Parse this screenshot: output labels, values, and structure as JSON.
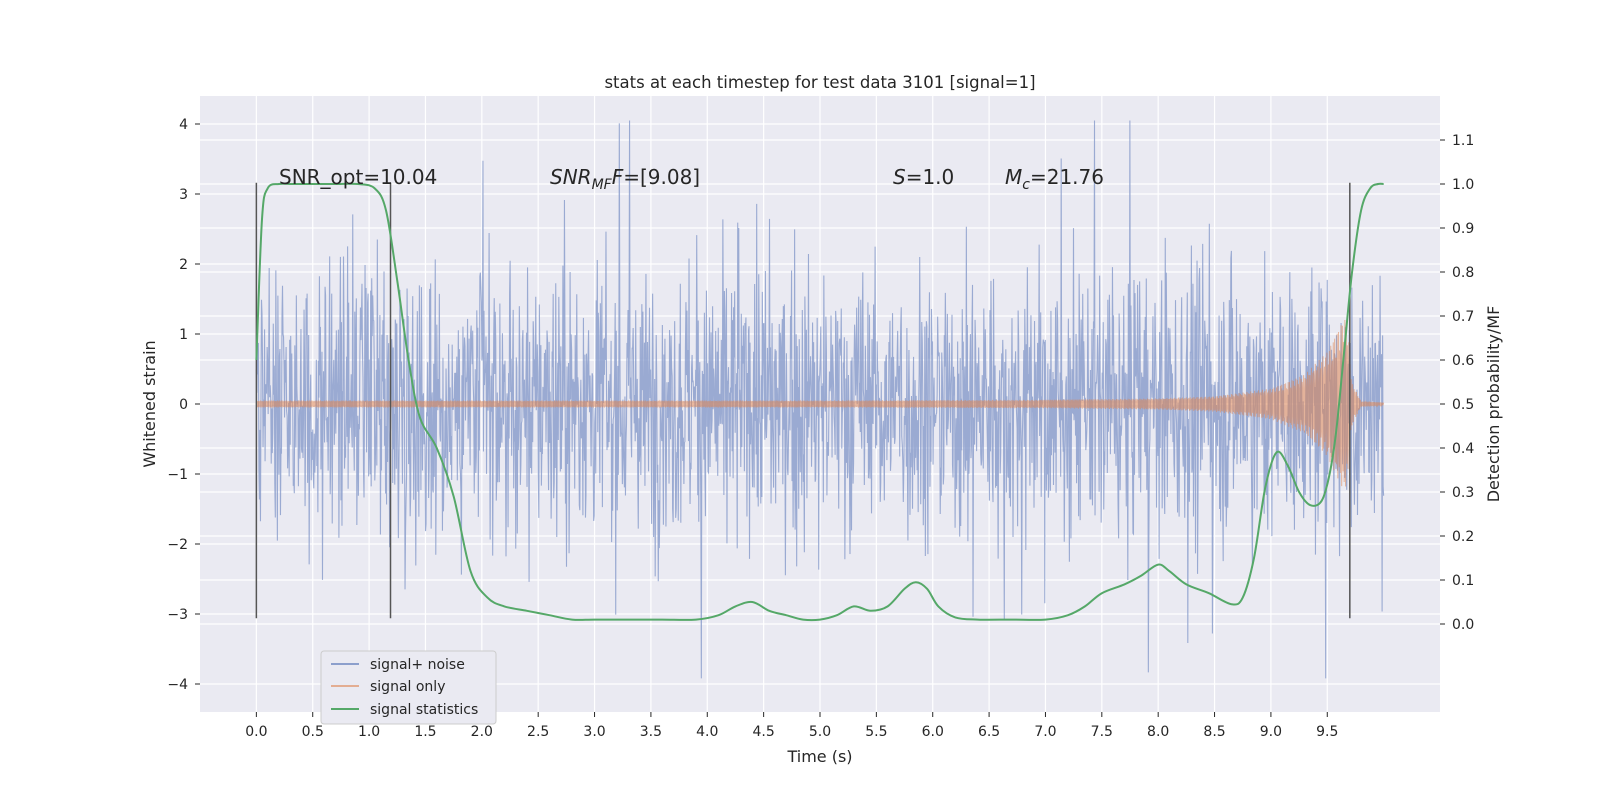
{
  "chart_data": {
    "type": "line",
    "title": "stats at each timestep for test data 3101 [signal=1]",
    "xlabel": "Time (s)",
    "ylabel_left": "Whitened strain",
    "ylabel_right": "Detection probability/MF",
    "xlim": [
      -0.5,
      10.5
    ],
    "ylim_left": [
      -4.4,
      4.4
    ],
    "ylim_right": [
      -0.2,
      1.2
    ],
    "x_ticks": [
      "0.0",
      "0.5",
      "1.0",
      "1.5",
      "2.0",
      "2.5",
      "3.0",
      "3.5",
      "4.0",
      "4.5",
      "5.0",
      "5.5",
      "6.0",
      "6.5",
      "7.0",
      "7.5",
      "8.0",
      "8.5",
      "9.0",
      "9.5"
    ],
    "y_ticks_left": [
      "4",
      "3",
      "2",
      "1",
      "0",
      "−1",
      "−2",
      "−3",
      "−4"
    ],
    "y_ticks_right": [
      "1.1",
      "1.0",
      "0.9",
      "0.8",
      "0.7",
      "0.6",
      "0.5",
      "0.4",
      "0.3",
      "0.2",
      "0.1",
      "0.0"
    ],
    "annotations": {
      "snr_opt": "SNR_opt=10.04",
      "snr_mf_sym": "SNR",
      "snr_mf_sub": "MF",
      "snr_mf_rest": "=[9.08]",
      "s_sym": "S",
      "s_rest": "=1.0",
      "mc_sym": "M",
      "mc_sub": "c",
      "mc_rest": "=21.76"
    },
    "vertical_markers": [
      {
        "x": 0.0,
        "y0": -3.06,
        "y1": 3.16
      },
      {
        "x": 1.19,
        "y0": -3.06,
        "y1": 3.16
      },
      {
        "x": 9.7,
        "y0": -3.06,
        "y1": 3.16
      }
    ],
    "legend": [
      {
        "label": "signal+ noise",
        "color": "#8c9fcc"
      },
      {
        "label": "signal only",
        "color": "#dd8452"
      },
      {
        "label": "signal statistics",
        "color": "#55a868"
      }
    ],
    "legend_position": "lower left",
    "series": [
      {
        "name": "signal+ noise",
        "color": "#8c9fcc",
        "x_range": [
          0,
          10
        ],
        "approx_envelope": {
          "typical_abs": 1.3,
          "peak_max": 4.05,
          "peak_min": -3.92
        }
      },
      {
        "name": "signal only",
        "color": "#dd8452",
        "x_range": [
          0,
          10
        ],
        "envelope_points": [
          [
            0,
            0.05
          ],
          [
            5,
            0.05
          ],
          [
            7,
            0.06
          ],
          [
            8,
            0.08
          ],
          [
            8.5,
            0.11
          ],
          [
            9,
            0.22
          ],
          [
            9.3,
            0.42
          ],
          [
            9.5,
            0.75
          ],
          [
            9.65,
            1.25
          ],
          [
            9.68,
            1.1
          ],
          [
            9.72,
            0.3
          ],
          [
            9.8,
            0.04
          ],
          [
            10,
            0.02
          ]
        ]
      },
      {
        "name": "signal statistics",
        "color": "#55a868",
        "axis": "right",
        "x": [
          0.0,
          0.05,
          0.1,
          0.2,
          0.3,
          0.5,
          0.7,
          0.9,
          1.05,
          1.15,
          1.25,
          1.35,
          1.45,
          1.6,
          1.75,
          1.9,
          2.05,
          2.2,
          2.4,
          2.6,
          2.8,
          3.0,
          3.3,
          3.6,
          3.9,
          4.1,
          4.25,
          4.4,
          4.55,
          4.7,
          4.85,
          5.0,
          5.15,
          5.3,
          5.45,
          5.6,
          5.75,
          5.85,
          5.95,
          6.05,
          6.2,
          6.4,
          6.7,
          7.0,
          7.2,
          7.35,
          7.5,
          7.7,
          7.85,
          8.0,
          8.1,
          8.25,
          8.45,
          8.65,
          8.75,
          8.85,
          8.95,
          9.05,
          9.15,
          9.25,
          9.35,
          9.45,
          9.52,
          9.58,
          9.65,
          9.72,
          9.8,
          9.88,
          9.95,
          10.0
        ],
        "values": [
          0.6,
          0.92,
          0.99,
          1.0,
          1.0,
          1.0,
          1.0,
          1.0,
          0.99,
          0.94,
          0.78,
          0.6,
          0.47,
          0.4,
          0.29,
          0.12,
          0.06,
          0.04,
          0.03,
          0.02,
          0.01,
          0.01,
          0.01,
          0.01,
          0.01,
          0.02,
          0.04,
          0.05,
          0.03,
          0.02,
          0.01,
          0.01,
          0.02,
          0.04,
          0.03,
          0.04,
          0.08,
          0.095,
          0.08,
          0.04,
          0.015,
          0.01,
          0.01,
          0.01,
          0.02,
          0.04,
          0.07,
          0.09,
          0.11,
          0.135,
          0.12,
          0.09,
          0.07,
          0.045,
          0.06,
          0.15,
          0.31,
          0.39,
          0.36,
          0.3,
          0.27,
          0.28,
          0.34,
          0.44,
          0.62,
          0.8,
          0.94,
          0.99,
          1.0,
          1.0
        ]
      }
    ]
  }
}
